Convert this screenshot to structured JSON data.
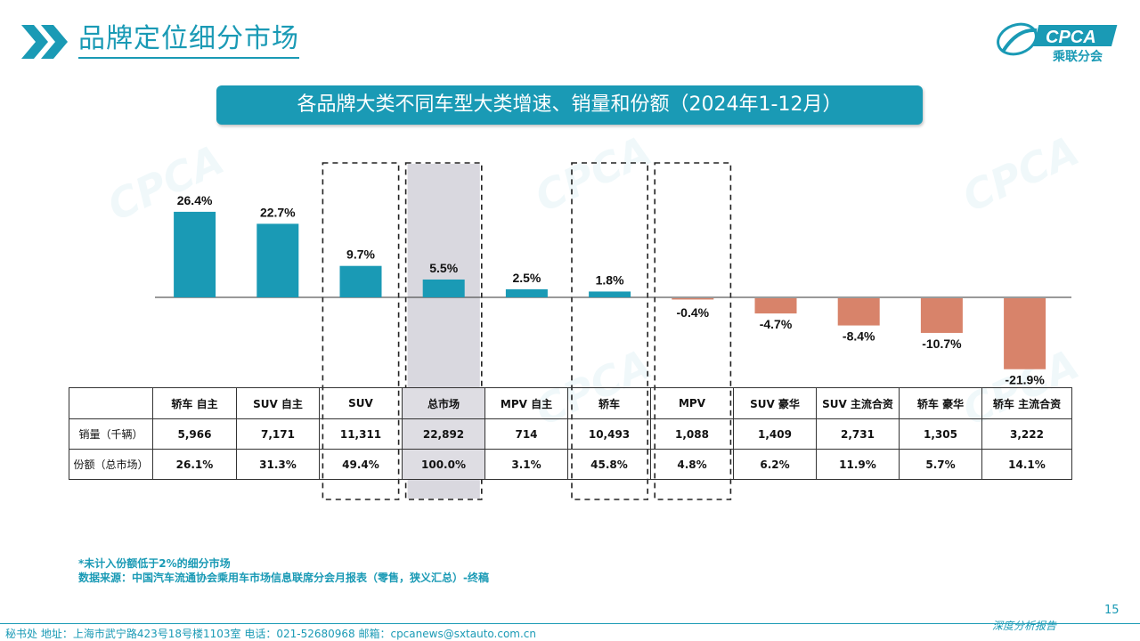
{
  "header": {
    "title": "品牌定位细分市场",
    "subtitle": "各品牌大类不同车型大类增速、销量和份额（2024年1-12月）",
    "logo_text": "CPCA",
    "logo_subtext": "乘联分会"
  },
  "chart_data": {
    "type": "bar",
    "title": "各品牌大类不同车型大类增速、销量和份额（2024年1-12月）",
    "categories": [
      "轿车 自主",
      "SUV 自主",
      "SUV",
      "总市场",
      "MPV 自主",
      "轿车",
      "MPV",
      "SUV 豪华",
      "SUV 主流合资",
      "轿车 豪华",
      "轿车 主流合资"
    ],
    "series": [
      {
        "values": [
          26.4,
          22.7,
          9.7,
          5.5,
          2.5,
          1.8,
          -0.4,
          -4.7,
          -8.4,
          -10.7,
          -21.9
        ]
      }
    ],
    "value_labels": [
      "26.4%",
      "22.7%",
      "9.7%",
      "5.5%",
      "2.5%",
      "1.8%",
      "-0.4%",
      "-4.7%",
      "-8.4%",
      "-10.7%",
      "-21.9%"
    ],
    "positive_color": "#1a9ab5",
    "negative_color": "#d8836a",
    "highlight_color": "#d9d8df",
    "highlighted_categories": [
      "总市场"
    ],
    "dashed_boxes": [
      "SUV",
      "总市场",
      "轿车",
      "MPV"
    ]
  },
  "table": {
    "rows": [
      {
        "label": "销量（千辆）",
        "values": [
          "5,966",
          "7,171",
          "11,311",
          "22,892",
          "714",
          "10,493",
          "1,088",
          "1,409",
          "2,731",
          "1,305",
          "3,222"
        ]
      },
      {
        "label": "份额（总市场）",
        "values": [
          "26.1%",
          "31.3%",
          "49.4%",
          "100.0%",
          "3.1%",
          "45.8%",
          "4.8%",
          "6.2%",
          "11.9%",
          "5.7%",
          "14.1%"
        ]
      }
    ]
  },
  "notes": {
    "line1": "*未计入份额低于2%的细分市场",
    "line2": "数据来源：中国汽车流通协会乘用车市场信息联席分会月报表（零售，狭义汇总）-终稿"
  },
  "footer": {
    "text": "秘书处   地址：上海市武宁路423号18号楼1103室   电话：021-52680968   邮箱：cpcanews@sxtauto.com.cn",
    "right_text": "深度分析报告",
    "page_number": "15"
  }
}
